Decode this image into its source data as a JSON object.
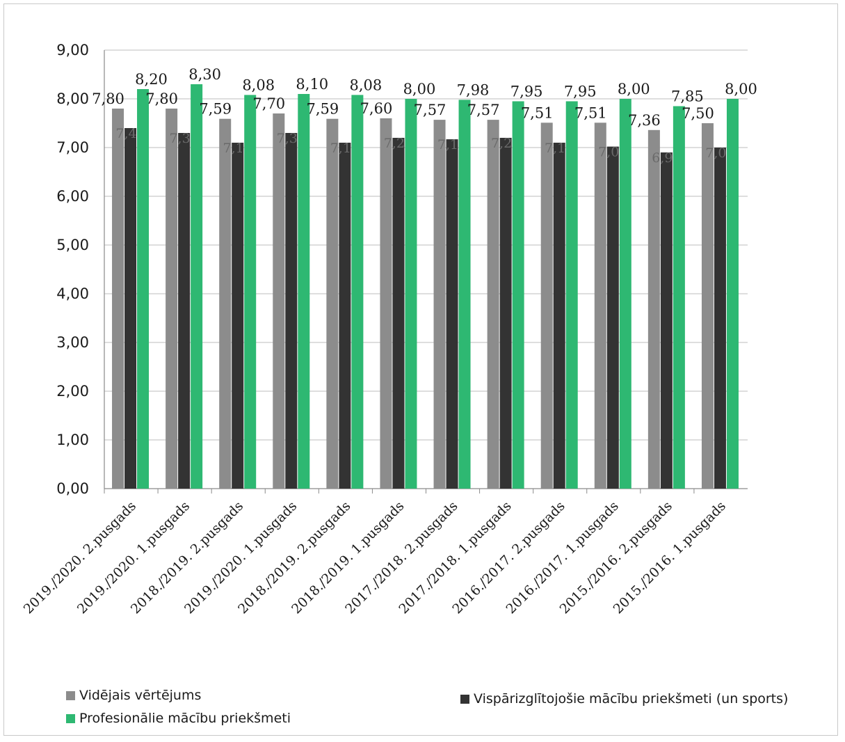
{
  "chart_data": {
    "type": "bar",
    "categories": [
      "2019./2020. 2.pusgads",
      "2019./2020. 1.pusgads",
      "2018./2019. 2.pusgads",
      "2019./2020. 1.pusgads",
      "2018./2019. 2.pusgads",
      "2018./2019. 1.pusgads",
      "2017./2018. 2.pusgads",
      "2017./2018. 1.pusgads",
      "2016./2017. 2.pusgads",
      "2016./2017. 1.pusgads",
      "2015./2016. 2.pusgads",
      "2015./2016. 1.pusgads"
    ],
    "series": [
      {
        "name": "Vidējais vērtējums",
        "color": "#8c8c8c",
        "values": [
          7.8,
          7.8,
          7.59,
          7.7,
          7.59,
          7.6,
          7.57,
          7.57,
          7.51,
          7.51,
          7.36,
          7.5
        ],
        "labels": [
          "7,80",
          "7,80",
          "7,59",
          "7,70",
          "7,59",
          "7,60",
          "7,57",
          "7,57",
          "7,51",
          "7,51",
          "7,36",
          "7,50"
        ]
      },
      {
        "name": "Vispārizglītojošie mācību priekšmeti (un sports)",
        "color": "#333333",
        "values": [
          7.4,
          7.3,
          7.1,
          7.3,
          7.1,
          7.2,
          7.17,
          7.2,
          7.1,
          7.02,
          6.9,
          7.0
        ],
        "labels": [
          "7,40",
          "7,30",
          "7,10",
          "7,30",
          "7,10",
          "7,20",
          "7,17",
          "7,20",
          "7,10",
          "7,02",
          "6,90",
          "7,00"
        ]
      },
      {
        "name": "Profesionālie  mācību priekšmeti",
        "color": "#2eb872",
        "values": [
          8.2,
          8.3,
          8.08,
          8.1,
          8.08,
          8.0,
          7.98,
          7.95,
          7.95,
          8.0,
          7.85,
          8.0
        ],
        "labels": [
          "8,20",
          "8,30",
          "8,08",
          "8,10",
          "8,08",
          "8,00",
          "7,98",
          "7,95",
          "7,95",
          "8,00",
          "7,85",
          "8,00"
        ]
      }
    ],
    "ylim": [
      0,
      9
    ],
    "yticks": [
      "0,00",
      "1,00",
      "2,00",
      "3,00",
      "4,00",
      "5,00",
      "6,00",
      "7,00",
      "8,00",
      "9,00"
    ],
    "grid": true,
    "legend_position": "bottom"
  },
  "legend": {
    "item1": "Vidējais vērtējums",
    "item2": "Vispārizglītojošie mācību priekšmeti (un sports)",
    "item3": "Profesionālie  mācību priekšmeti"
  }
}
